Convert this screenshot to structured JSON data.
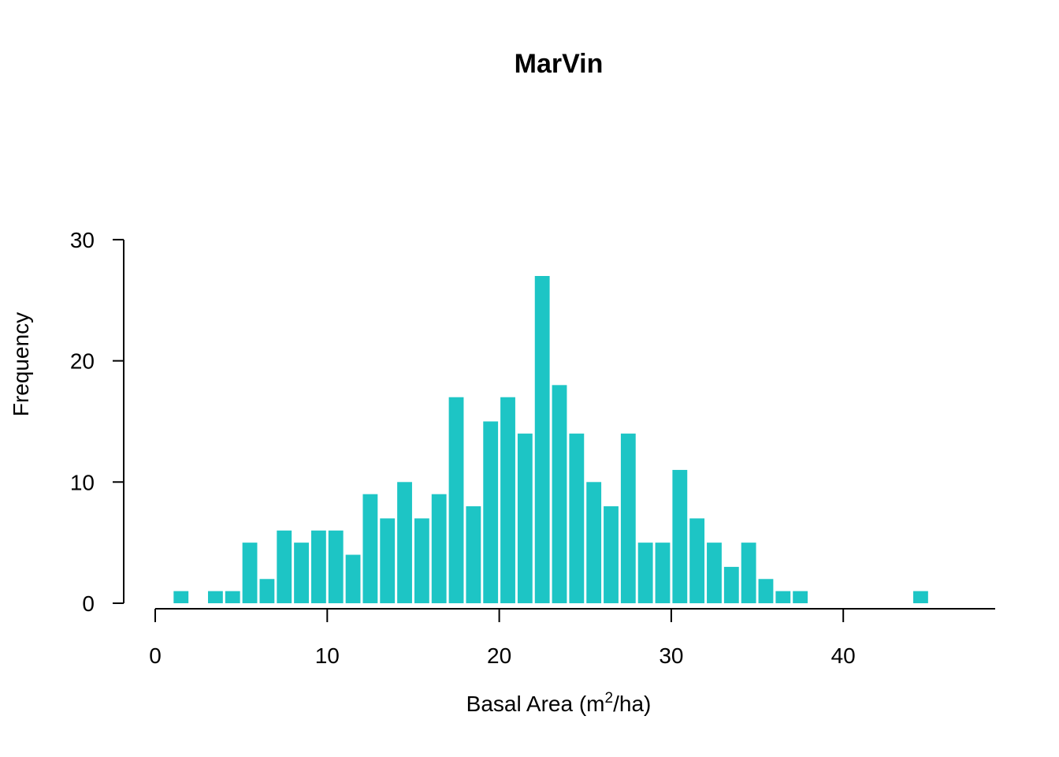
{
  "chart_data": {
    "type": "bar",
    "title": "MarVin",
    "xlabel": {
      "prefix": "Basal Area (m",
      "superscript": "2",
      "suffix": "/ha)"
    },
    "ylabel": "Frequency",
    "xlim": [
      0,
      48
    ],
    "ylim": [
      0,
      30
    ],
    "xticks": [
      "0",
      "10",
      "20",
      "30",
      "40"
    ],
    "yticks": [
      "0",
      "10",
      "20",
      "30"
    ],
    "bar_color": "#1DC5C5",
    "bin_width": 1,
    "bins": [
      {
        "x": 1,
        "count": 1
      },
      {
        "x": 3,
        "count": 1
      },
      {
        "x": 4,
        "count": 1
      },
      {
        "x": 5,
        "count": 5
      },
      {
        "x": 6,
        "count": 2
      },
      {
        "x": 7,
        "count": 6
      },
      {
        "x": 8,
        "count": 5
      },
      {
        "x": 9,
        "count": 6
      },
      {
        "x": 10,
        "count": 6
      },
      {
        "x": 11,
        "count": 4
      },
      {
        "x": 12,
        "count": 9
      },
      {
        "x": 13,
        "count": 7
      },
      {
        "x": 14,
        "count": 10
      },
      {
        "x": 15,
        "count": 7
      },
      {
        "x": 16,
        "count": 9
      },
      {
        "x": 17,
        "count": 17
      },
      {
        "x": 18,
        "count": 8
      },
      {
        "x": 19,
        "count": 15
      },
      {
        "x": 20,
        "count": 17
      },
      {
        "x": 21,
        "count": 14
      },
      {
        "x": 22,
        "count": 27
      },
      {
        "x": 23,
        "count": 18
      },
      {
        "x": 24,
        "count": 14
      },
      {
        "x": 25,
        "count": 10
      },
      {
        "x": 26,
        "count": 8
      },
      {
        "x": 27,
        "count": 14
      },
      {
        "x": 28,
        "count": 5
      },
      {
        "x": 29,
        "count": 5
      },
      {
        "x": 30,
        "count": 11
      },
      {
        "x": 31,
        "count": 7
      },
      {
        "x": 32,
        "count": 5
      },
      {
        "x": 33,
        "count": 3
      },
      {
        "x": 34,
        "count": 5
      },
      {
        "x": 35,
        "count": 2
      },
      {
        "x": 36,
        "count": 1
      },
      {
        "x": 37,
        "count": 1
      },
      {
        "x": 44,
        "count": 1
      }
    ],
    "grid": false,
    "legend": "none"
  }
}
